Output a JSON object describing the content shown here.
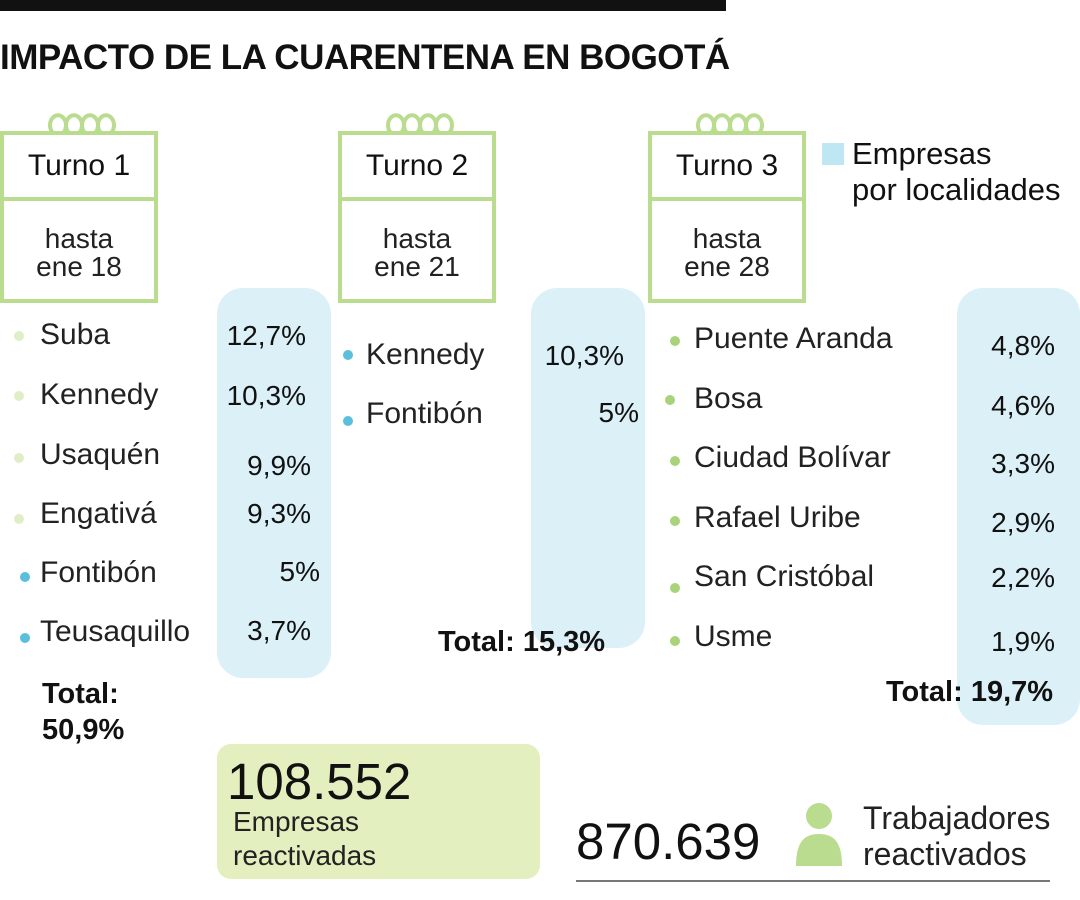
{
  "title": "IMPACTO DE LA CUARENTENA EN BOGOTÁ",
  "legend": {
    "line1": "Empresas",
    "line2": "por localidades",
    "color": "#bfe6f3"
  },
  "colors": {
    "ticket_border": "#b9dc8f",
    "panel": "#dcf0f7",
    "dot_green": "#b9dc8f",
    "dot_blue": "#5bbfdc"
  },
  "turnos": [
    {
      "label": "Turno 1",
      "until_1": "hasta",
      "until_2": "ene 18",
      "items": [
        {
          "name": "Suba",
          "pct": "12,7%",
          "dot": "green"
        },
        {
          "name": "Kennedy",
          "pct": "10,3%",
          "dot": "green"
        },
        {
          "name": "Usaquén",
          "pct": "9,9%",
          "dot": "green"
        },
        {
          "name": "Engativá",
          "pct": "9,3%",
          "dot": "green"
        },
        {
          "name": "Fontibón",
          "pct": "5%",
          "dot": "blue"
        },
        {
          "name": "Teusaquillo",
          "pct": "3,7%",
          "dot": "blue"
        }
      ],
      "total_label": "Total:",
      "total_value": "50,9%"
    },
    {
      "label": "Turno 2",
      "until_1": "hasta",
      "until_2": "ene 21",
      "items": [
        {
          "name": "Kennedy",
          "pct": "10,3%",
          "dot": "blue"
        },
        {
          "name": "Fontibón",
          "pct": "5%",
          "dot": "blue"
        }
      ],
      "total": "Total: 15,3%"
    },
    {
      "label": "Turno 3",
      "until_1": "hasta",
      "until_2": "ene 28",
      "items": [
        {
          "name": "Puente Aranda",
          "pct": "4,8%",
          "dot": "green"
        },
        {
          "name": "Bosa",
          "pct": "4,6%",
          "dot": "green"
        },
        {
          "name": "Ciudad Bolívar",
          "pct": "3,3%",
          "dot": "green"
        },
        {
          "name": "Rafael Uribe",
          "pct": "2,9%",
          "dot": "green"
        },
        {
          "name": "San Cristóbal",
          "pct": "2,2%",
          "dot": "green"
        },
        {
          "name": "Usme",
          "pct": "1,9%",
          "dot": "green"
        }
      ],
      "total": "Total: 19,7%"
    }
  ],
  "empresas": {
    "value": "108.552",
    "caption_1": "Empresas",
    "caption_2": "reactivadas"
  },
  "trabajadores": {
    "value": "870.639",
    "caption_1": "Trabajadores",
    "caption_2": "reactivados",
    "icon": "person-icon"
  }
}
